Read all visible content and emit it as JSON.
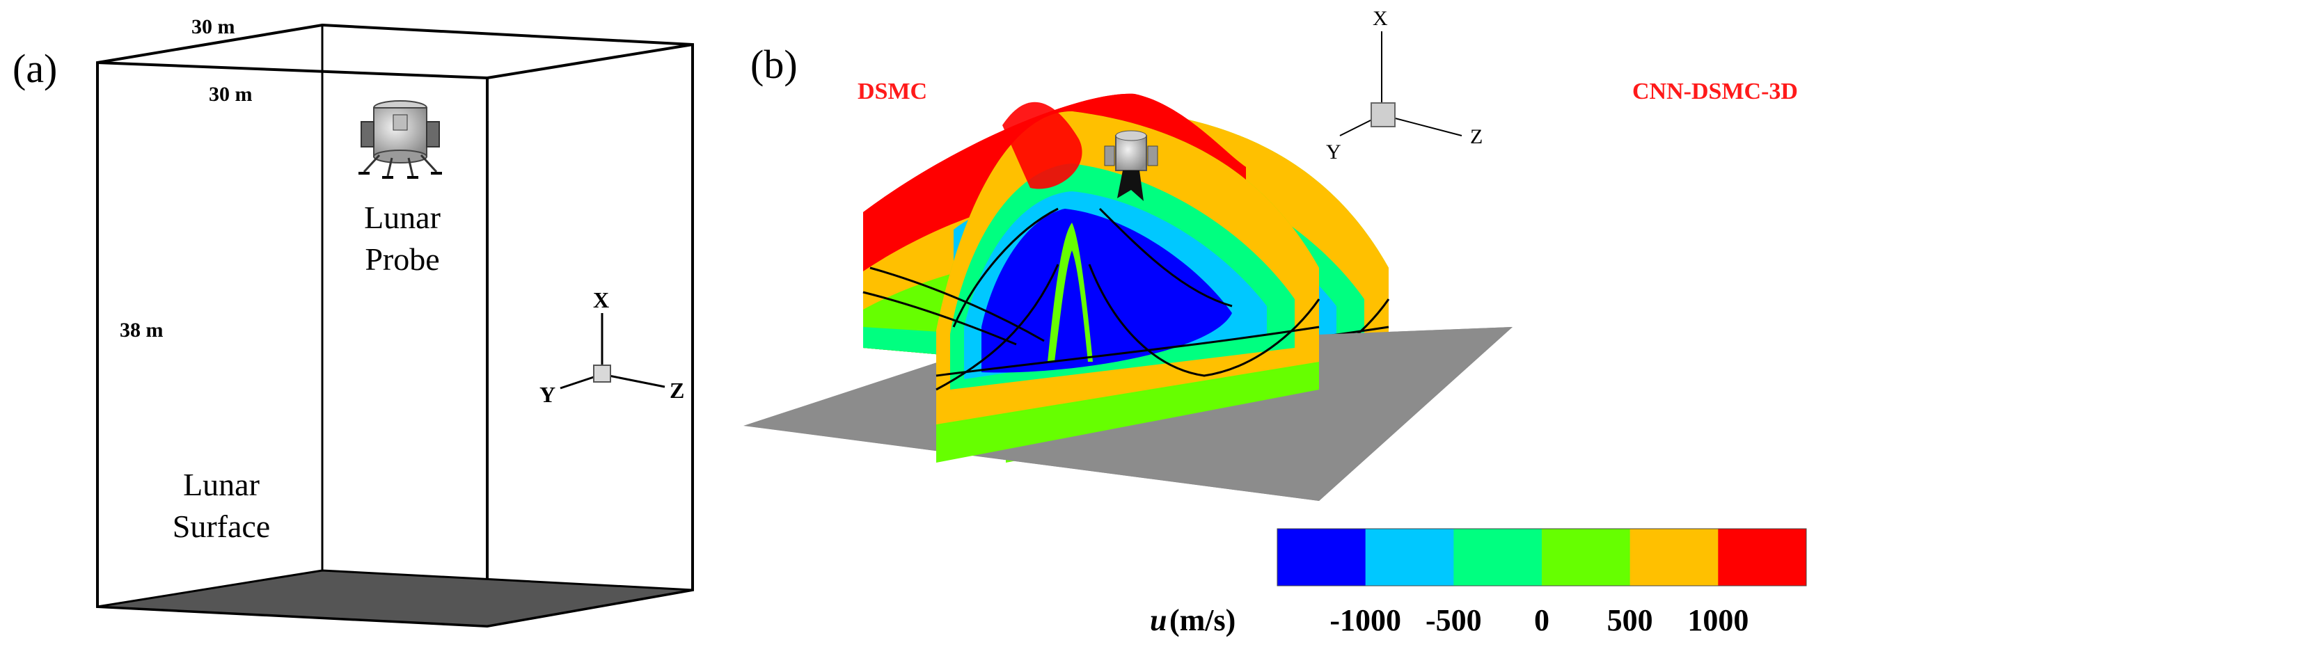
{
  "panel_a": {
    "tag": "(a)",
    "dim_top": "30 m",
    "dim_depth": "30 m",
    "dim_height": "38 m",
    "probe_label_line1": "Lunar",
    "probe_label_line2": "Probe",
    "surface_label_line1": "Lunar",
    "surface_label_line2": "Surface",
    "axes": {
      "x": "X",
      "y": "Y",
      "z": "Z"
    }
  },
  "panel_b": {
    "tag": "(b)",
    "left_title": "DSMC",
    "right_title": "CNN-DSMC-3D",
    "axes": {
      "x": "X",
      "y": "Y",
      "z": "Z"
    },
    "title_color": "#ff1a1a",
    "colorbar": {
      "variable": "u",
      "unit": "(m/s)",
      "colors": [
        "#0000ff",
        "#00c8ff",
        "#00ff80",
        "#66ff00",
        "#ffc000",
        "#ff0000"
      ],
      "ticks": [
        "-1000",
        "-500",
        "0",
        "500",
        "1000"
      ]
    }
  }
}
